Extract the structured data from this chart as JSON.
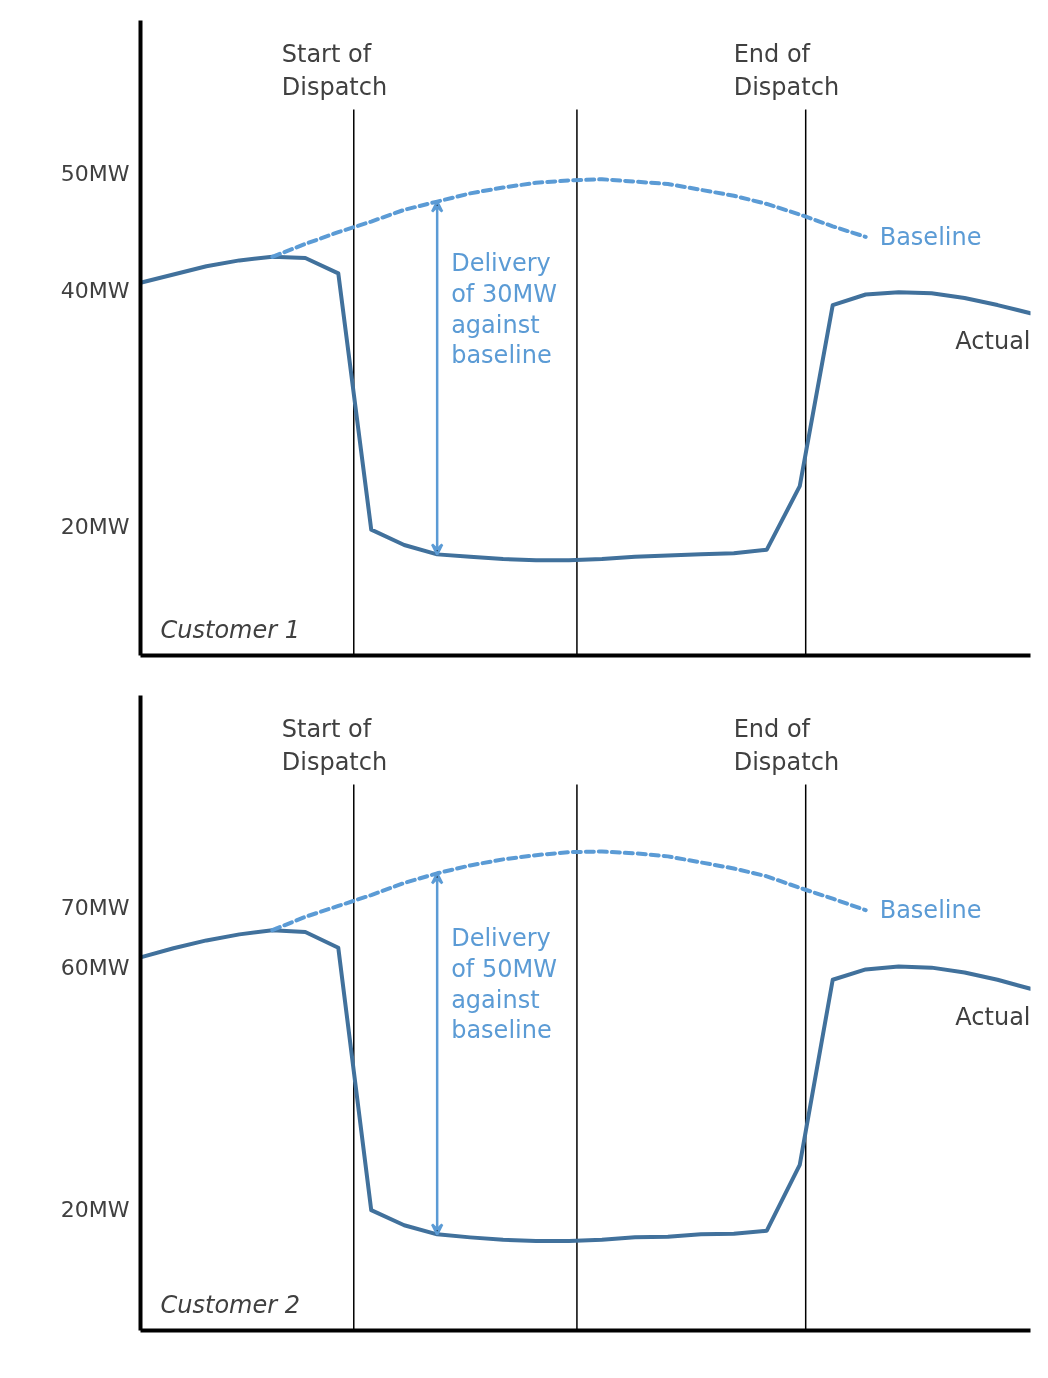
{
  "chart_data": [
    {
      "type": "line",
      "categories": [
        null,
        null,
        null,
        null,
        null,
        null,
        null,
        null,
        null,
        null,
        null,
        null,
        null,
        null,
        null,
        null,
        null,
        null,
        null,
        null,
        null,
        null,
        null,
        null,
        null,
        null,
        null,
        null
      ],
      "ylim": [
        9,
        63
      ],
      "yticks": [
        {
          "value": 50,
          "label": "50MW"
        },
        {
          "value": 40,
          "label": "40MW"
        },
        {
          "value": 20,
          "label": "20MW"
        }
      ],
      "tick_labels": "y",
      "grid": false,
      "series": [
        {
          "name": "Actual",
          "color": "#41719c",
          "values": [
            40.7,
            41.4,
            42.1,
            42.6,
            42.9,
            42.8,
            41.5,
            19.7,
            18.4,
            17.6,
            17.4,
            17.2,
            17.1,
            17.1,
            17.2,
            17.4,
            17.5,
            17.6,
            17.7,
            18.0,
            23.4,
            38.8,
            39.7,
            39.9,
            39.8,
            39.4,
            38.8,
            38.1
          ]
        },
        {
          "name": "Baseline",
          "color": "#5b9bd5",
          "line_style": "dashed",
          "values": [
            null,
            null,
            null,
            null,
            42.9,
            44.0,
            45.0,
            45.9,
            46.9,
            47.6,
            48.3,
            48.8,
            49.2,
            49.4,
            49.5,
            49.3,
            49.1,
            48.6,
            48.1,
            47.4,
            46.5,
            45.5,
            44.6,
            null,
            null,
            null,
            null,
            null
          ]
        }
      ],
      "annotations": [
        "Start of\nDispatch",
        "End of\nDispatch",
        "Customer 1",
        "Delivery\nof 30MW\nagainst\nbaseline"
      ]
    },
    {
      "type": "line",
      "categories": [
        null,
        null,
        null,
        null,
        null,
        null,
        null,
        null,
        null,
        null,
        null,
        null,
        null,
        null,
        null,
        null,
        null,
        null,
        null,
        null,
        null,
        null,
        null,
        null,
        null,
        null,
        null,
        null
      ],
      "ylim": [
        0,
        105
      ],
      "yticks": [
        {
          "value": 70,
          "label": "70MW"
        },
        {
          "value": 60,
          "label": "60MW"
        },
        {
          "value": 20,
          "label": "20MW"
        }
      ],
      "tick_labels": "y",
      "grid": false,
      "series": [
        {
          "name": "Actual",
          "color": "#41719c",
          "values": [
            61.7,
            63.2,
            64.5,
            65.5,
            66.2,
            65.9,
            63.3,
            19.9,
            17.4,
            15.9,
            15.4,
            15.0,
            14.8,
            14.8,
            15.0,
            15.4,
            15.5,
            15.9,
            16.0,
            16.5,
            27.4,
            58.0,
            59.7,
            60.2,
            60.0,
            59.2,
            58.0,
            56.5
          ]
        },
        {
          "name": "Baseline",
          "color": "#5b9bd5",
          "line_style": "dashed",
          "values": [
            null,
            null,
            null,
            null,
            66.2,
            68.4,
            70.2,
            72.0,
            74.0,
            75.6,
            76.9,
            77.9,
            78.6,
            79.1,
            79.2,
            78.9,
            78.4,
            77.4,
            76.4,
            75.1,
            73.2,
            71.4,
            69.5,
            null,
            null,
            null,
            null,
            null
          ]
        }
      ],
      "annotations": [
        "Start of\nDispatch",
        "End of\nDispatch",
        "Customer 2",
        "Delivery\nof 50MW\nagainst\nbaseline"
      ]
    }
  ]
}
